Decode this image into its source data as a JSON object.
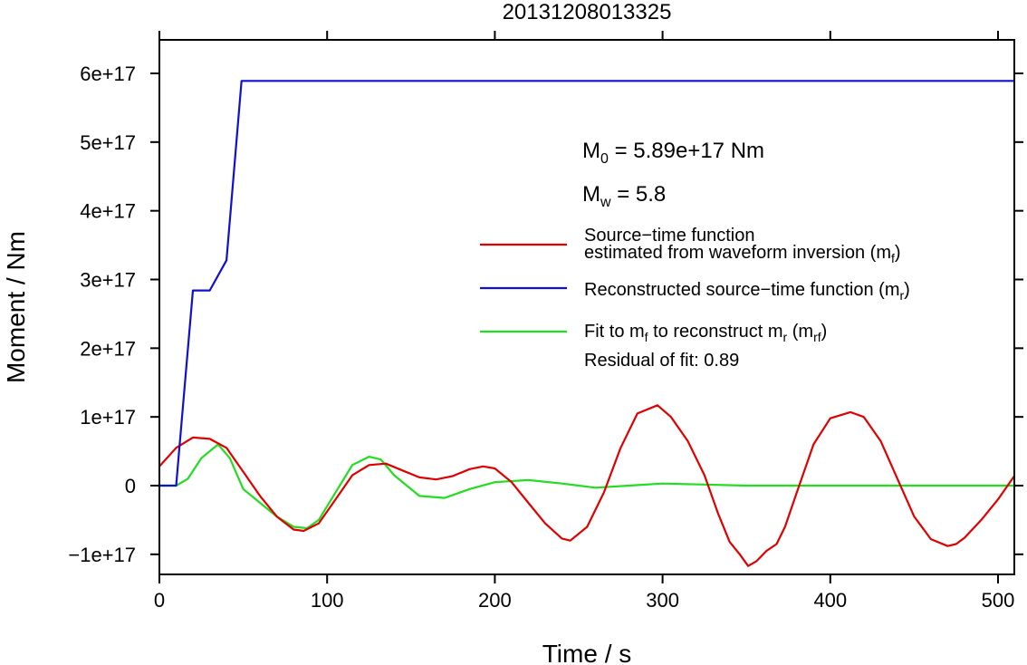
{
  "chart_data": {
    "type": "line",
    "title": "20131208013325",
    "xlabel": "Time / s",
    "ylabel": "Moment / Nm",
    "xlim": [
      0,
      510
    ],
    "ylim": [
      -1.3e+17,
      6.5e+17
    ],
    "x_ticks": [
      0,
      100,
      200,
      300,
      400,
      500
    ],
    "x_tick_labels": [
      "0",
      "100",
      "200",
      "300",
      "400",
      "500"
    ],
    "y_ticks": [
      -1e+17,
      0,
      1e+17,
      2e+17,
      3e+17,
      4e+17,
      5e+17,
      6e+17
    ],
    "y_tick_labels": [
      "−1e+17",
      "0",
      "1e+17",
      "2e+17",
      "3e+17",
      "4e+17",
      "5e+17",
      "6e+17"
    ],
    "grid": false,
    "legend_position": "right",
    "annotations": {
      "m0_symbol": "M",
      "m0_sub": "0",
      "m0_text": " = 5.89e+17 Nm",
      "mw_symbol": "M",
      "mw_sub": "w",
      "mw_text": " = 5.8",
      "residual": "Residual of fit: 0.89"
    },
    "series": [
      {
        "name": "Source−time function estimated from waveform inversion (mf)",
        "legend_lines": [
          {
            "parts": [
              {
                "t": "Source−time function"
              }
            ]
          },
          {
            "parts": [
              {
                "t": "estimated from waveform inversion (m"
              },
              {
                "t": "f",
                "sub": true
              },
              {
                "t": ")"
              }
            ]
          }
        ],
        "color": "#e00000",
        "x": [
          0,
          10,
          20,
          30,
          40,
          50,
          60,
          70,
          80,
          86,
          95,
          105,
          115,
          125,
          135,
          145,
          155,
          165,
          175,
          185,
          193,
          200,
          210,
          220,
          230,
          240,
          245,
          255,
          265,
          275,
          285,
          297,
          305,
          315,
          325,
          333,
          340,
          346,
          351,
          356,
          362,
          368,
          373,
          380,
          390,
          400,
          412,
          420,
          430,
          440,
          450,
          460,
          470,
          475,
          480,
          490,
          500,
          510
        ],
        "y": [
          2.8e+16,
          5.5e+16,
          7e+16,
          6.8e+16,
          5.5e+16,
          2e+16,
          -1.5e+16,
          -4.5e+16,
          -6.4e+16,
          -6.6e+16,
          -5.5e+16,
          -2e+16,
          1.5e+16,
          3e+16,
          3.2e+16,
          2.2e+16,
          1.2e+16,
          9000000000000000.0,
          1.4e+16,
          2.4e+16,
          2.8e+16,
          2.5e+16,
          5000000000000000.0,
          -2.5e+16,
          -5.5e+16,
          -7.7e+16,
          -8e+16,
          -6e+16,
          -1e+16,
          5.5e+16,
          1.05e+17,
          1.17e+17,
          1e+17,
          6.5e+16,
          1.5e+16,
          -4e+16,
          -8.2e+16,
          -1e+17,
          -1.17e+17,
          -1.1e+17,
          -9.5e+16,
          -8.5e+16,
          -6e+16,
          -1e+16,
          6e+16,
          9.8e+16,
          1.07e+17,
          1e+17,
          6.5e+16,
          1e+16,
          -4.5e+16,
          -7.8e+16,
          -8.8e+16,
          -8.5e+16,
          -7.6e+16,
          -5e+16,
          -2e+16,
          1.5e+16
        ]
      },
      {
        "name": "Reconstructed source−time function (mr)",
        "legend_lines": [
          {
            "parts": [
              {
                "t": "Reconstructed source−time function (m"
              },
              {
                "t": "r",
                "sub": true
              },
              {
                "t": ")"
              }
            ]
          }
        ],
        "color": "#1010d0",
        "x": [
          0,
          10,
          20,
          30,
          40,
          49,
          510
        ],
        "y": [
          0,
          0,
          2.84e+17,
          2.84e+17,
          3.28e+17,
          5.89e+17,
          5.89e+17
        ]
      },
      {
        "name": "Fit to mf to reconstruct mr (mrf)",
        "legend_lines": [
          {
            "parts": [
              {
                "t": "Fit to m"
              },
              {
                "t": "f",
                "sub": true
              },
              {
                "t": " to reconstruct m"
              },
              {
                "t": "r",
                "sub": true
              },
              {
                "t": " (m"
              },
              {
                "t": "rf",
                "sub": true
              },
              {
                "t": ")"
              }
            ]
          }
        ],
        "color": "#22dd22",
        "x": [
          0,
          10,
          17,
          25,
          35,
          42,
          50,
          60,
          70,
          80,
          88,
          95,
          105,
          115,
          125,
          132,
          140,
          155,
          170,
          185,
          200,
          220,
          240,
          260,
          280,
          300,
          350,
          400,
          510
        ],
        "y": [
          0,
          0,
          1e+16,
          4e+16,
          6e+16,
          4e+16,
          -5000000000000000.0,
          -2.5e+16,
          -4.5e+16,
          -6e+16,
          -6.2e+16,
          -5e+16,
          -1e+16,
          3e+16,
          4.2e+16,
          3.8e+16,
          1.5e+16,
          -1.5e+16,
          -1.8e+16,
          -5000000000000000.0,
          5000000000000000.0,
          8000000000000000.0,
          3000000000000000.0,
          -3000000000000000.0,
          0,
          3000000000000000.0,
          0,
          0,
          0
        ]
      }
    ]
  }
}
